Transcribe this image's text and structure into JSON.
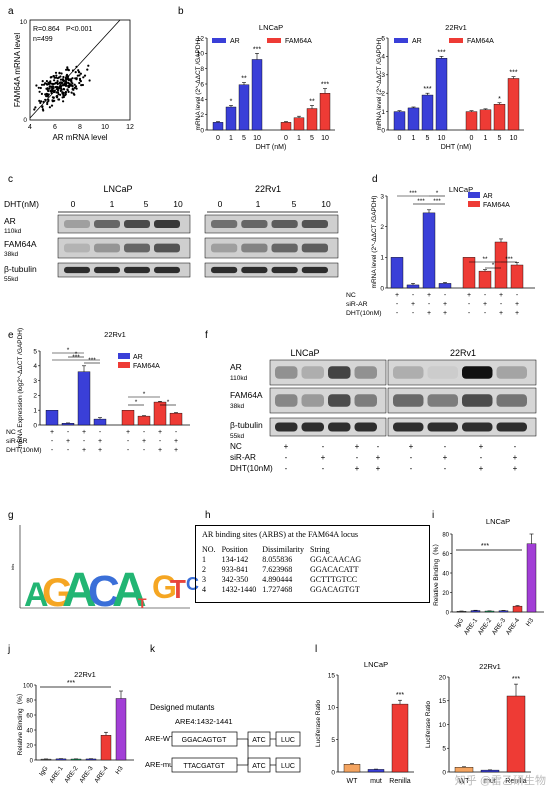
{
  "panels": {
    "a": {
      "letter": "a",
      "stats": [
        "R=0.864",
        "P<0.001",
        "n=499"
      ],
      "xlabel": "AR mRNA level",
      "ylabel": "FAM64A mRNA level",
      "xticks": [
        "4",
        "6",
        "8",
        "10",
        "12"
      ],
      "yticks": [
        "0",
        "2",
        "4",
        "6",
        "8",
        "10"
      ]
    },
    "b": {
      "letter": "b"
    },
    "c": {
      "letter": "c",
      "title_left": "LNCaP",
      "title_right": "22Rv1",
      "dht_label": "DHT(nM)",
      "doses": [
        "0",
        "1",
        "5",
        "10"
      ],
      "rows": [
        {
          "name": "AR",
          "kd": "110kd"
        },
        {
          "name": "FAM64A",
          "kd": "38kd"
        },
        {
          "name": "β-tubulin",
          "kd": "55kd"
        }
      ]
    },
    "d": {
      "letter": "d",
      "treat_labels": [
        "NC",
        "siR-AR",
        "DHT(10nM)"
      ],
      "signs": [
        [
          "+",
          "-",
          "+",
          "-",
          "+",
          "-",
          "+",
          "-"
        ],
        [
          "-",
          "+",
          "-",
          "+",
          "-",
          "+",
          "-",
          "+"
        ],
        [
          "-",
          "-",
          "+",
          "+",
          "-",
          "-",
          "+",
          "+"
        ]
      ]
    },
    "e": {
      "letter": "e",
      "treat_labels": [
        "NC",
        "siR-AR",
        "DHT(10nM)"
      ],
      "signs": [
        [
          "+",
          "-",
          "+",
          "-",
          "+",
          "-",
          "+",
          "-"
        ],
        [
          "-",
          "+",
          "-",
          "+",
          "-",
          "+",
          "-",
          "+"
        ],
        [
          "-",
          "-",
          "+",
          "+",
          "-",
          "-",
          "+",
          "+"
        ]
      ]
    },
    "f": {
      "letter": "f",
      "title_left": "LNCaP",
      "title_right": "22Rv1",
      "rows": [
        {
          "name": "AR",
          "kd": "110kd"
        },
        {
          "name": "FAM64A",
          "kd": "38kd"
        },
        {
          "name": "β-tubulin",
          "kd": "55kd"
        }
      ],
      "treat_labels": [
        "NC",
        "siR-AR",
        "DHT(10nM)"
      ],
      "signs": [
        [
          "+",
          "-",
          "+",
          "-",
          "+",
          "-",
          "+",
          "-"
        ],
        [
          "-",
          "+",
          "-",
          "+",
          "-",
          "+",
          "-",
          "+"
        ],
        [
          "-",
          "-",
          "+",
          "+",
          "-",
          "-",
          "+",
          "+"
        ]
      ]
    },
    "g": {
      "letter": "g",
      "motif": [
        "A",
        "G",
        "A",
        "C",
        "A",
        "T",
        "G",
        "T",
        "C"
      ],
      "yaxis": "bits"
    },
    "h": {
      "letter": "h",
      "header": "AR binding sites (ARBS) at the FAM64A locus",
      "columns": [
        "NO.",
        "Position",
        "Dissimilarity",
        "String"
      ],
      "rows": [
        [
          "1",
          "134-142",
          "8.055836",
          "GGACAACAG"
        ],
        [
          "2",
          "933-841",
          "7.623968",
          "GGACACATT"
        ],
        [
          "3",
          "342-350",
          "4.890444",
          "GCTTTGTCC"
        ],
        [
          "4",
          "1432-1440",
          "1.727468",
          "GGACAGTGT"
        ]
      ]
    },
    "i": {
      "letter": "i"
    },
    "j": {
      "letter": "j"
    },
    "k": {
      "letter": "k",
      "title": "Designed mutants",
      "site": "ARE4:1432-1441",
      "constructs": [
        {
          "label": "ARE-WT",
          "seq": "GGACAGTGT",
          "mid": "ATC",
          "end": "LUC"
        },
        {
          "label": "ARE-mut",
          "seq": "TTACGATGT",
          "mid": "ATC",
          "end": "LUC"
        }
      ]
    },
    "l": {
      "letter": "l"
    }
  },
  "watermark": "知乎 @雷乙研生物",
  "colors": {
    "blue": "#3a3fd8",
    "red": "#ee3b35",
    "orange": "#f4a460",
    "purple": "#a23fd6",
    "green": "#22b573",
    "gray": "#7f7f7f"
  },
  "chart_data": [
    {
      "id": "a",
      "type": "scatter",
      "xlabel": "AR mRNA level",
      "ylabel": "FAM64A mRNA level",
      "xlim": [
        4,
        12
      ],
      "ylim": [
        0,
        10
      ],
      "xticks": [
        4,
        6,
        8,
        10,
        12
      ],
      "yticks": [
        0,
        2,
        4,
        6,
        8,
        10
      ],
      "n": 499,
      "fit_line": [
        [
          4,
          0.2
        ],
        [
          11.2,
          10
        ]
      ]
    },
    {
      "id": "b1",
      "type": "bar",
      "title": "LNCaP",
      "xlabel": "DHT (nM)",
      "ylabel": "mRNA level (2^-ΔΔCT /GAPDH)",
      "ylim": [
        0,
        12
      ],
      "yticks": [
        0,
        2,
        4,
        6,
        8,
        10,
        12
      ],
      "categories": [
        "0",
        "1",
        "5",
        "10"
      ],
      "series": [
        {
          "name": "AR",
          "values": [
            1.0,
            3.0,
            5.9,
            9.2
          ],
          "errors": [
            0.1,
            0.2,
            0.3,
            0.8
          ],
          "sig": [
            "",
            "*",
            "**",
            "***"
          ]
        },
        {
          "name": "FAM64A",
          "values": [
            1.0,
            1.6,
            2.8,
            4.8
          ],
          "errors": [
            0.1,
            0.2,
            0.4,
            0.6
          ],
          "sig": [
            "",
            "",
            "**",
            "***"
          ]
        }
      ]
    },
    {
      "id": "b2",
      "type": "bar",
      "title": "22Rv1",
      "xlabel": "DHT (nM)",
      "ylabel": "mRNA level (2^-ΔΔCT /GAPDH)",
      "ylim": [
        0,
        5
      ],
      "yticks": [
        0,
        1,
        2,
        3,
        4,
        5
      ],
      "categories": [
        "0",
        "1",
        "5",
        "10"
      ],
      "series": [
        {
          "name": "AR",
          "values": [
            1.0,
            1.2,
            1.9,
            3.9
          ],
          "errors": [
            0.05,
            0.05,
            0.1,
            0.1
          ],
          "sig": [
            "",
            "",
            "***",
            "***"
          ]
        },
        {
          "name": "FAM64A",
          "values": [
            1.0,
            1.1,
            1.4,
            2.8
          ],
          "errors": [
            0.05,
            0.05,
            0.08,
            0.1
          ],
          "sig": [
            "",
            "",
            "*",
            "***"
          ]
        }
      ]
    },
    {
      "id": "d",
      "type": "bar",
      "title": "LNCaP",
      "ylabel": "mRNA level (2^-ΔΔCT /GAPDH)",
      "ylim": [
        0,
        3
      ],
      "yticks": [
        0,
        1,
        2,
        3
      ],
      "series": [
        {
          "name": "AR",
          "values": [
            1.0,
            0.1,
            2.45,
            0.15
          ],
          "errors": [
            0,
            0.05,
            0.1,
            0.03
          ]
        },
        {
          "name": "FAM64A",
          "values": [
            1.0,
            0.55,
            1.5,
            0.75
          ],
          "errors": [
            0,
            0.05,
            0.1,
            0.08
          ]
        }
      ]
    },
    {
      "id": "e",
      "type": "bar",
      "title": "22Rv1",
      "ylabel": "mRNA Expression (log2^-ΔΔCT /GAPDH)",
      "ylim": [
        0,
        5
      ],
      "yticks": [
        0,
        1,
        2,
        3,
        4,
        5
      ],
      "series": [
        {
          "name": "AR",
          "values": [
            1.0,
            0.12,
            3.6,
            0.4
          ],
          "errors": [
            0,
            0.02,
            0.4,
            0.1
          ]
        },
        {
          "name": "FAM64A",
          "values": [
            1.0,
            0.6,
            1.55,
            0.8
          ],
          "errors": [
            0,
            0.03,
            0.05,
            0.04
          ]
        }
      ]
    },
    {
      "id": "i",
      "type": "bar",
      "title": "LNCaP",
      "ylabel": "Relative Binding（%）",
      "ylim": [
        0,
        80
      ],
      "yticks": [
        0,
        20,
        40,
        60,
        80
      ],
      "categories": [
        "IgG",
        "ARE-1",
        "ARE-2",
        "ARE-3",
        "ARE-4",
        "H3"
      ],
      "values": [
        0.8,
        1.5,
        1.0,
        1.3,
        6.0,
        70
      ],
      "errors": [
        0.2,
        0.3,
        0.2,
        0.3,
        0.6,
        10
      ],
      "sig": "***"
    },
    {
      "id": "j",
      "type": "bar",
      "title": "22Rv1",
      "ylabel": "Relative Binding（%）",
      "ylim": [
        0,
        100
      ],
      "yticks": [
        0,
        20,
        40,
        60,
        80,
        100
      ],
      "categories": [
        "IgG",
        "ARE-1",
        "ARE-2",
        "ARE-3",
        "ARE-4",
        "H3"
      ],
      "values": [
        1.2,
        1.5,
        1.3,
        1.4,
        33,
        82
      ],
      "errors": [
        0.2,
        0.3,
        0.2,
        0.3,
        4,
        10
      ],
      "sig": "***"
    },
    {
      "id": "l1",
      "type": "bar",
      "title": "LNCaP",
      "ylabel": "Luciferase Ratio",
      "ylim": [
        0,
        15
      ],
      "yticks": [
        0,
        5,
        10,
        15
      ],
      "categories": [
        "WT",
        "mut",
        "Renilla"
      ],
      "values": [
        1.2,
        0.4,
        10.5
      ],
      "errors": [
        0.1,
        0.05,
        0.6
      ],
      "sig": "***"
    },
    {
      "id": "l2",
      "type": "bar",
      "title": "22Rv1",
      "ylabel": "Luciferase Ratio",
      "ylim": [
        0,
        20
      ],
      "yticks": [
        0,
        5,
        10,
        15,
        20
      ],
      "categories": [
        "WT",
        "mut",
        "Renilla"
      ],
      "values": [
        1.0,
        0.4,
        16
      ],
      "errors": [
        0.1,
        0.05,
        2.5
      ],
      "sig": "***"
    }
  ]
}
